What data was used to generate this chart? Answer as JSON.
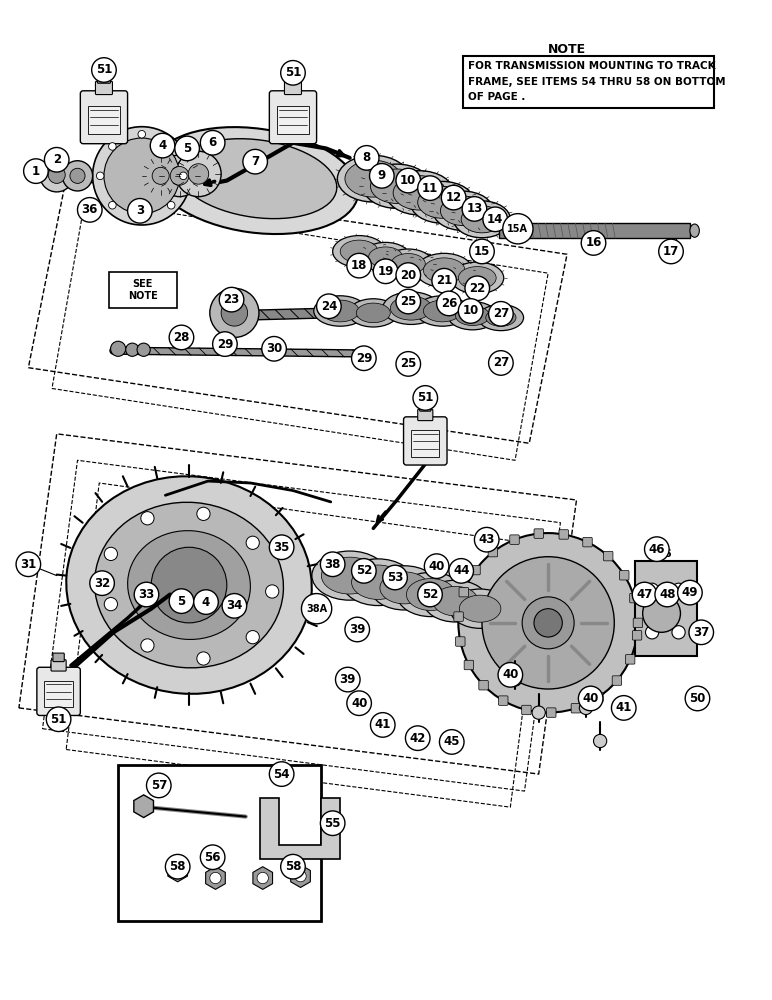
{
  "background_color": "#ffffff",
  "note_title": "NOTE",
  "note_text": "FOR TRANSMISSION MOUNTING TO TRACK\nFRAME, SEE ITEMS 54 THRU 58 ON BOTTOM\nOF PAGE .",
  "see_note_text": "SEE\nNOTE",
  "fig_width": 7.72,
  "fig_height": 10.0,
  "dpi": 100
}
